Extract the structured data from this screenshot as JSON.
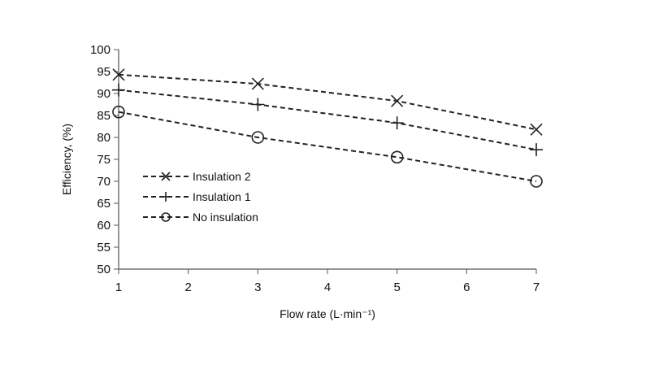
{
  "chart_data": {
    "type": "line",
    "title": "",
    "xlabel": "Flow rate (L·min⁻¹)",
    "ylabel": "Efficiency, (%)",
    "xlim": [
      1,
      7
    ],
    "ylim": [
      50,
      100
    ],
    "xticks": [
      "1",
      "2",
      "3",
      "4",
      "5",
      "6",
      "7"
    ],
    "yticks": [
      "50",
      "55",
      "60",
      "65",
      "70",
      "75",
      "80",
      "85",
      "90",
      "95",
      "100"
    ],
    "grid": false,
    "legend_position": "left-middle",
    "line_style": "dashed",
    "series": [
      {
        "name": "Insulation 2",
        "marker": "x",
        "color": "#222222",
        "points": [
          {
            "x": 1,
            "y": 94.3
          },
          {
            "x": 3,
            "y": 92.2
          },
          {
            "x": 5,
            "y": 88.3
          },
          {
            "x": 7,
            "y": 81.8
          }
        ]
      },
      {
        "name": "Insulation 1",
        "marker": "plus",
        "color": "#222222",
        "points": [
          {
            "x": 1,
            "y": 90.8
          },
          {
            "x": 3,
            "y": 87.5
          },
          {
            "x": 5,
            "y": 83.3
          },
          {
            "x": 7,
            "y": 77.2
          }
        ]
      },
      {
        "name": "No insulation",
        "marker": "circle",
        "color": "#222222",
        "points": [
          {
            "x": 1,
            "y": 85.8
          },
          {
            "x": 3,
            "y": 80.0
          },
          {
            "x": 5,
            "y": 75.5
          },
          {
            "x": 7,
            "y": 70.0
          }
        ]
      }
    ]
  }
}
